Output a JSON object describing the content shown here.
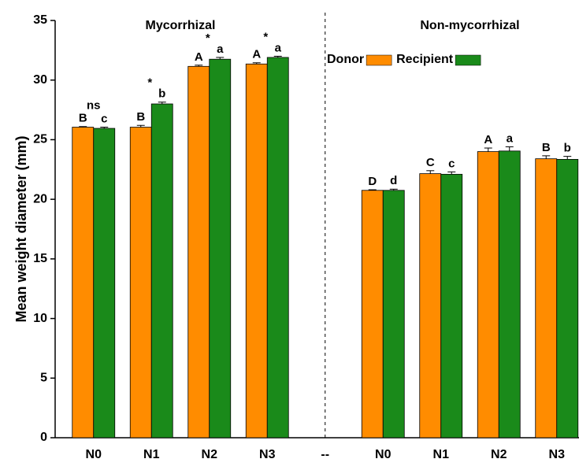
{
  "chart_data": {
    "type": "bar",
    "ylabel": "Mean weight diameter (mm)",
    "sections": [
      "Mycorrhizal",
      "Non-mycorrhizal"
    ],
    "categories": [
      "N0",
      "N1",
      "N2",
      "N3",
      "--",
      "N0",
      "N1",
      "N2",
      "N3"
    ],
    "series": [
      {
        "name": "Donor",
        "color": "#ff8c00",
        "values": [
          26.05,
          26.05,
          31.15,
          31.35,
          null,
          20.75,
          22.15,
          24.0,
          23.4
        ],
        "errors": [
          0.05,
          0.15,
          0.1,
          0.1,
          null,
          0.05,
          0.25,
          0.3,
          0.25
        ],
        "labels": [
          "B",
          "B",
          "A",
          "A",
          null,
          "D",
          "C",
          "A",
          "B"
        ]
      },
      {
        "name": "Recipient",
        "color": "#1a8a1a",
        "values": [
          25.95,
          28.0,
          31.75,
          31.9,
          null,
          20.75,
          22.1,
          24.05,
          23.35
        ],
        "errors": [
          0.1,
          0.15,
          0.15,
          0.1,
          null,
          0.1,
          0.2,
          0.35,
          0.25
        ],
        "labels": [
          "c",
          "b",
          "a",
          "a",
          null,
          "d",
          "c",
          "a",
          "b"
        ]
      }
    ],
    "significance": [
      "ns",
      "*",
      "*",
      "*",
      null,
      null,
      null,
      null,
      null
    ],
    "ylim": [
      0,
      35
    ],
    "yticks": [
      0,
      5,
      10,
      15,
      20,
      25,
      30,
      35
    ],
    "grid": false
  }
}
